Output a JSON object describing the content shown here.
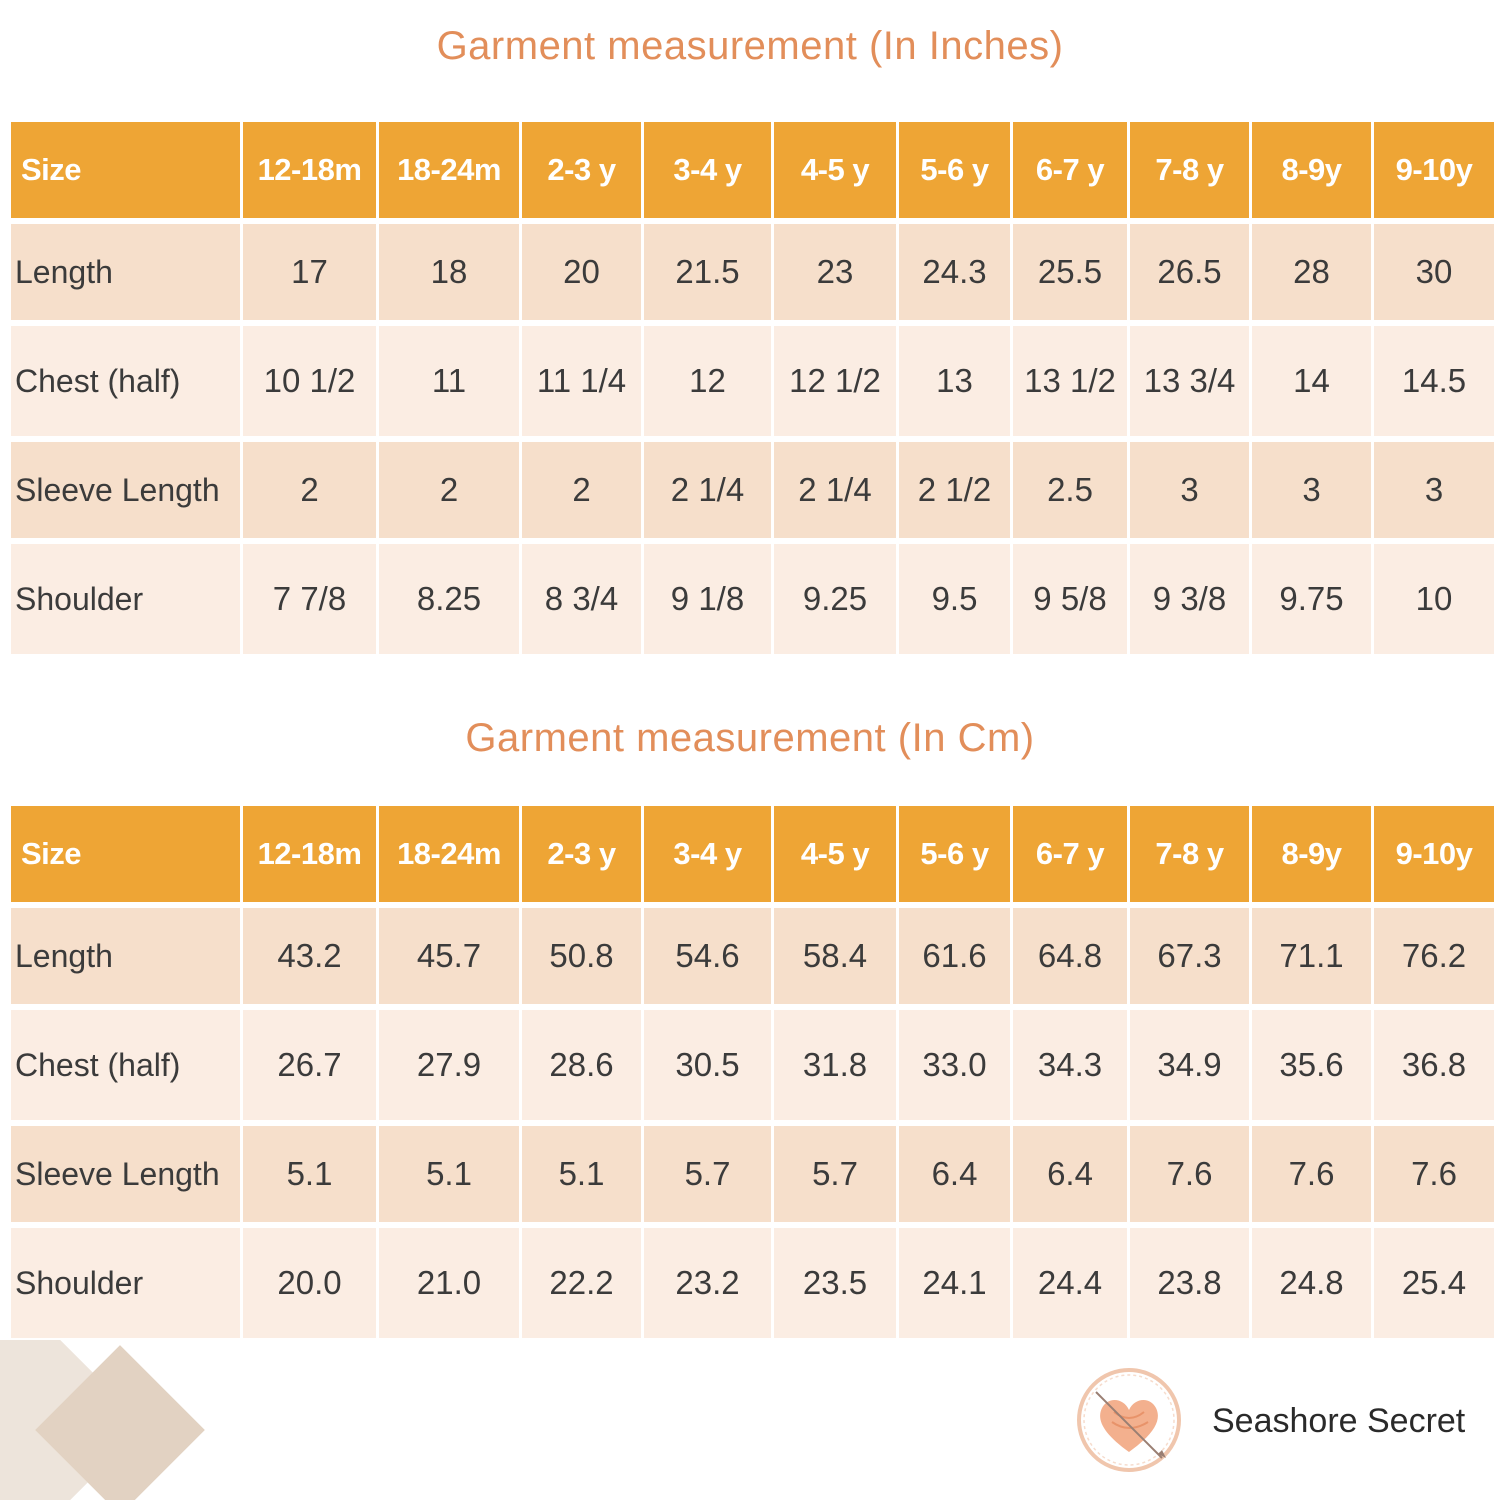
{
  "title_inches": "Garment measurement (In Inches)",
  "title_cm": "Garment measurement (In Cm)",
  "headers": [
    "Size",
    "12-18m",
    "18-24m",
    "2-3 y",
    "3-4 y",
    "4-5 y",
    "5-6 y",
    "6-7 y",
    "7-8 y",
    "8-9y",
    "9-10y"
  ],
  "inches_rows": [
    {
      "label": "Length",
      "values": [
        "17",
        "18",
        "20",
        "21.5",
        "23",
        "24.3",
        "25.5",
        "26.5",
        "28",
        "30"
      ]
    },
    {
      "label": "Chest (half)",
      "values": [
        "10 1/2",
        "11",
        "11 1/4",
        "12",
        "12 1/2",
        "13",
        "13 1/2",
        "13 3/4",
        "14",
        "14.5"
      ]
    },
    {
      "label": "Sleeve Length",
      "values": [
        "2",
        "2",
        "2",
        "2 1/4",
        "2 1/4",
        "2 1/2",
        "2.5",
        "3",
        "3",
        "3"
      ]
    },
    {
      "label": "Shoulder",
      "values": [
        "7 7/8",
        "8.25",
        "8 3/4",
        "9 1/8",
        "9.25",
        "9.5",
        "9 5/8",
        "9 3/8",
        "9.75",
        "10"
      ]
    }
  ],
  "cm_rows": [
    {
      "label": "Length",
      "values": [
        "43.2",
        "45.7",
        "50.8",
        "54.6",
        "58.4",
        "61.6",
        "64.8",
        "67.3",
        "71.1",
        "76.2"
      ]
    },
    {
      "label": "Chest (half)",
      "values": [
        "26.7",
        "27.9",
        "28.6",
        "30.5",
        "31.8",
        "33.0",
        "34.3",
        "34.9",
        "35.6",
        "36.8"
      ]
    },
    {
      "label": "Sleeve Length",
      "values": [
        "5.1",
        "5.1",
        "5.1",
        "5.7",
        "5.7",
        "6.4",
        "6.4",
        "7.6",
        "7.6",
        "7.6"
      ]
    },
    {
      "label": "Shoulder",
      "values": [
        "20.0",
        "21.0",
        "22.2",
        "23.2",
        "23.5",
        "24.1",
        "24.4",
        "23.8",
        "24.8",
        "25.4"
      ]
    }
  ],
  "brand": {
    "name": "Seashore Secret",
    "logo_icon": "heart-shell-logo-icon"
  },
  "colors": {
    "header": "#eea535",
    "title": "#e28e5a",
    "row_dark": "#f6dfcb",
    "row_light": "#fbede3"
  }
}
